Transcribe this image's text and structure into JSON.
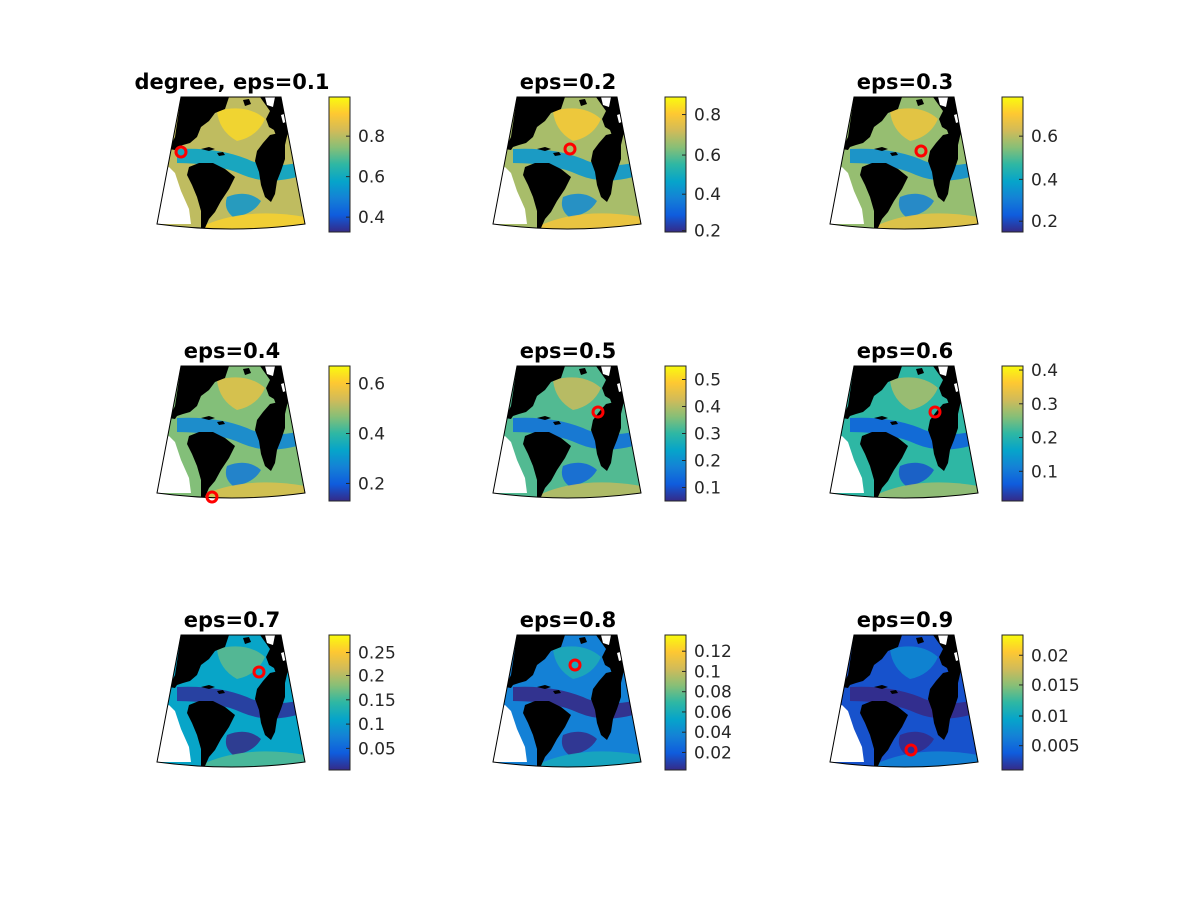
{
  "figure": {
    "colorbar_palette": [
      "#352a87",
      "#0f5cdd",
      "#1481d6",
      "#06a4ca",
      "#2eb7a4",
      "#87bf77",
      "#d1bb59",
      "#fec832",
      "#f9fb0e"
    ],
    "marker_color": "#ff0000",
    "land_color": "#000000",
    "panels": [
      {
        "title": "degree, eps=0.1",
        "ticks": [
          "0.8",
          "0.6",
          "0.4"
        ],
        "field_level": 0.72,
        "marker": "caribbean"
      },
      {
        "title": "eps=0.2",
        "ticks": [
          "0.8",
          "0.6",
          "0.4",
          "0.2"
        ],
        "field_level": 0.68,
        "marker": "mid-atlantic"
      },
      {
        "title": "eps=0.3",
        "ticks": [
          "0.6",
          "0.4",
          "0.2"
        ],
        "field_level": 0.65,
        "marker": "east-atlantic"
      },
      {
        "title": "eps=0.4",
        "ticks": [
          "0.6",
          "0.4",
          "0.2"
        ],
        "field_level": 0.62,
        "marker": "south-tip"
      },
      {
        "title": "eps=0.5",
        "ticks": [
          "0.5",
          "0.4",
          "0.3",
          "0.2",
          "0.1"
        ],
        "field_level": 0.55,
        "marker": "europe-coast"
      },
      {
        "title": "eps=0.6",
        "ticks": [
          "0.4",
          "0.3",
          "0.2",
          "0.1"
        ],
        "field_level": 0.5,
        "marker": "europe-coast"
      },
      {
        "title": "eps=0.7",
        "ticks": [
          "0.25",
          "0.2",
          "0.15",
          "0.1",
          "0.05"
        ],
        "field_level": 0.38,
        "marker": "europe-coast-north"
      },
      {
        "title": "eps=0.8",
        "ticks": [
          "0.12",
          "0.1",
          "0.08",
          "0.06",
          "0.04",
          "0.02"
        ],
        "field_level": 0.25,
        "marker": "north-atlantic"
      },
      {
        "title": "eps=0.9",
        "ticks": [
          "0.02",
          "0.015",
          "0.01",
          "0.005"
        ],
        "field_level": 0.1,
        "marker": "south-brazil"
      }
    ]
  }
}
